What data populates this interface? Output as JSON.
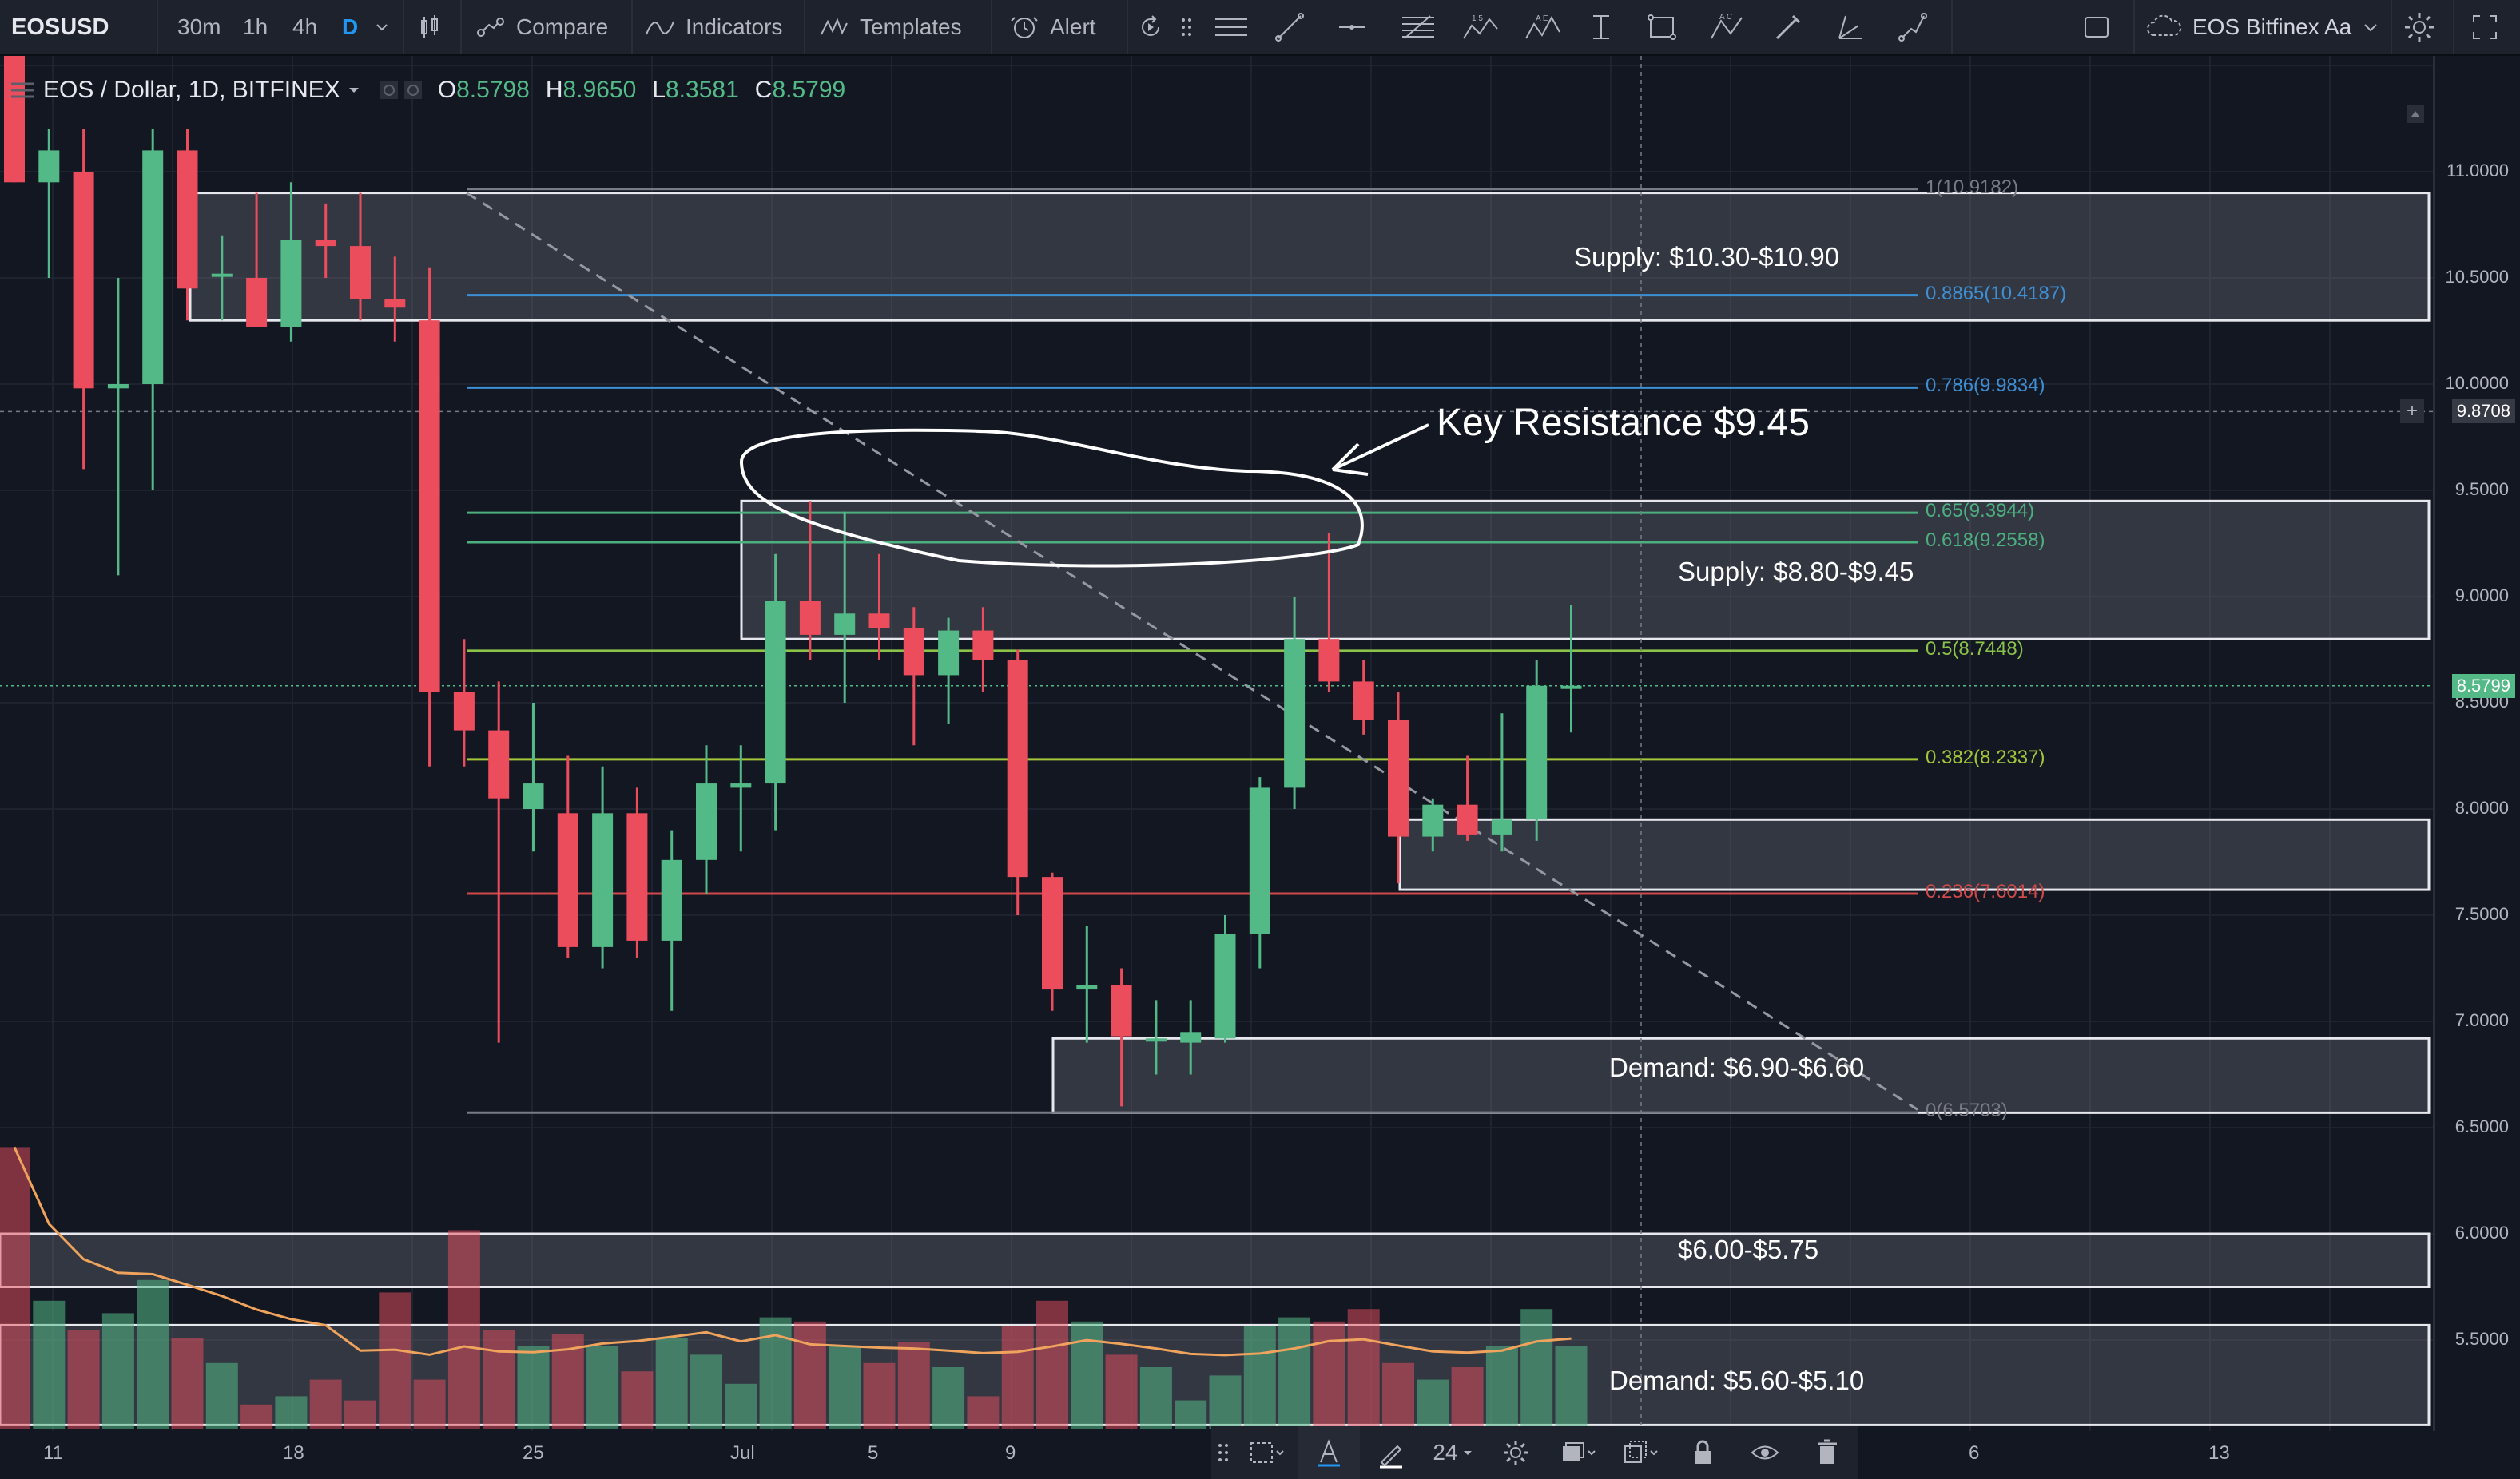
{
  "toolbar": {
    "symbol": "EOSUSD",
    "intervals": [
      "30m",
      "1h",
      "4h",
      "D"
    ],
    "compare_label": "Compare",
    "indicators_label": "Indicators",
    "templates_label": "Templates",
    "alert_label": "Alert",
    "fib_tool_digits": "1 5",
    "pattern_tool_letters": "A E",
    "abcd_tool_letters": "A C",
    "theme_label": "EOS Bitfinex Aa"
  },
  "legend": {
    "title": "EOS / Dollar, 1D, BITFINEX",
    "open_label": "O",
    "open": "8.5798",
    "high_label": "H",
    "high": "8.9650",
    "low_label": "L",
    "low": "8.3581",
    "close_label": "C",
    "close": "8.5799"
  },
  "annotations": {
    "supply_high": "Supply: $10.30-$10.90",
    "key_resistance": "Key Resistance $9.45",
    "supply_mid": "Supply: $8.80-$9.45",
    "demand_mid": "Demand: $6.90-$6.60",
    "zone_low": "$6.00-$5.75",
    "demand_low": "Demand: $5.60-$5.10"
  },
  "fib_levels": [
    {
      "label": "1(10.9182)",
      "price": 10.9182,
      "color": "#787b86"
    },
    {
      "label": "0.8865(10.4187)",
      "price": 10.4187,
      "color": "#3d8fd4"
    },
    {
      "label": "0.786(9.9834)",
      "price": 9.9834,
      "color": "#3d8fd4"
    },
    {
      "label": "0.65(9.3944)",
      "price": 9.3944,
      "color": "#4caf7f"
    },
    {
      "label": "0.618(9.2558)",
      "price": 9.2558,
      "color": "#4caf7f"
    },
    {
      "label": "0.5(8.7448)",
      "price": 8.7448,
      "color": "#8bc34a"
    },
    {
      "label": "0.382(8.2337)",
      "price": 8.2337,
      "color": "#a4c639"
    },
    {
      "label": "0.236(7.6014)",
      "price": 7.6014,
      "color": "#d04a4a"
    },
    {
      "label": "0(6.5703)",
      "price": 6.5703,
      "color": "#787b86"
    }
  ],
  "price_scale": [
    "11.0000",
    "10.5000",
    "10.0000",
    "9.5000",
    "9.0000",
    "8.5000",
    "8.0000",
    "7.5000",
    "7.0000",
    "6.5000",
    "6.0000",
    "5.5000"
  ],
  "price_tags": {
    "crosshair": "9.8708",
    "last": "8.5799"
  },
  "time_scale": [
    "11",
    "18",
    "25",
    "Jul",
    "5",
    "9",
    "6",
    "13"
  ],
  "bottom_toolbar": {
    "font_size": "24"
  },
  "colors": {
    "up": "#53b987",
    "down": "#eb4d5c",
    "background": "#131722"
  },
  "chart_data": {
    "type": "candlestick",
    "symbol": "EOSUSD",
    "timeframe": "1D",
    "candles": [
      {
        "o": 11.6,
        "h": 11.8,
        "l": 10.95,
        "c": 10.95
      },
      {
        "o": 10.95,
        "h": 11.2,
        "l": 10.5,
        "c": 11.1
      },
      {
        "o": 11.0,
        "h": 11.2,
        "l": 9.6,
        "c": 9.98
      },
      {
        "o": 9.98,
        "h": 10.5,
        "l": 9.1,
        "c": 10.0
      },
      {
        "o": 10.0,
        "h": 11.2,
        "l": 9.5,
        "c": 11.1
      },
      {
        "o": 11.1,
        "h": 11.2,
        "l": 10.3,
        "c": 10.45
      },
      {
        "o": 10.52,
        "h": 10.7,
        "l": 10.3,
        "c": 10.52
      },
      {
        "o": 10.5,
        "h": 10.9,
        "l": 10.3,
        "c": 10.27
      },
      {
        "o": 10.27,
        "h": 10.95,
        "l": 10.2,
        "c": 10.68
      },
      {
        "o": 10.68,
        "h": 10.85,
        "l": 10.5,
        "c": 10.65
      },
      {
        "o": 10.65,
        "h": 10.9,
        "l": 10.3,
        "c": 10.4
      },
      {
        "o": 10.4,
        "h": 10.6,
        "l": 10.2,
        "c": 10.36
      },
      {
        "o": 10.3,
        "h": 10.55,
        "l": 8.2,
        "c": 8.55
      },
      {
        "o": 8.55,
        "h": 8.8,
        "l": 8.2,
        "c": 8.37
      },
      {
        "o": 8.37,
        "h": 8.6,
        "l": 6.9,
        "c": 8.05
      },
      {
        "o": 8.0,
        "h": 8.5,
        "l": 7.8,
        "c": 8.12
      },
      {
        "o": 7.98,
        "h": 8.25,
        "l": 7.3,
        "c": 7.35
      },
      {
        "o": 7.35,
        "h": 8.2,
        "l": 7.25,
        "c": 7.98
      },
      {
        "o": 7.98,
        "h": 8.1,
        "l": 7.3,
        "c": 7.38
      },
      {
        "o": 7.38,
        "h": 7.9,
        "l": 7.05,
        "c": 7.76
      },
      {
        "o": 7.76,
        "h": 8.3,
        "l": 7.6,
        "c": 8.12
      },
      {
        "o": 8.1,
        "h": 8.3,
        "l": 7.8,
        "c": 8.12
      },
      {
        "o": 8.12,
        "h": 9.2,
        "l": 7.9,
        "c": 8.98
      },
      {
        "o": 8.98,
        "h": 9.45,
        "l": 8.7,
        "c": 8.82
      },
      {
        "o": 8.82,
        "h": 9.4,
        "l": 8.5,
        "c": 8.92
      },
      {
        "o": 8.92,
        "h": 9.2,
        "l": 8.7,
        "c": 8.85
      },
      {
        "o": 8.85,
        "h": 8.95,
        "l": 8.3,
        "c": 8.63
      },
      {
        "o": 8.63,
        "h": 8.9,
        "l": 8.4,
        "c": 8.84
      },
      {
        "o": 8.84,
        "h": 8.95,
        "l": 8.55,
        "c": 8.7
      },
      {
        "o": 8.7,
        "h": 8.75,
        "l": 7.5,
        "c": 7.68
      },
      {
        "o": 7.68,
        "h": 7.7,
        "l": 7.05,
        "c": 7.15
      },
      {
        "o": 7.15,
        "h": 7.45,
        "l": 6.9,
        "c": 7.17
      },
      {
        "o": 7.17,
        "h": 7.25,
        "l": 6.6,
        "c": 6.93
      },
      {
        "o": 6.92,
        "h": 7.1,
        "l": 6.75,
        "c": 6.92
      },
      {
        "o": 6.9,
        "h": 7.1,
        "l": 6.75,
        "c": 6.95
      },
      {
        "o": 6.92,
        "h": 7.5,
        "l": 6.9,
        "c": 7.41
      },
      {
        "o": 7.41,
        "h": 8.15,
        "l": 7.25,
        "c": 8.1
      },
      {
        "o": 8.1,
        "h": 9.0,
        "l": 8.0,
        "c": 8.8
      },
      {
        "o": 8.8,
        "h": 9.3,
        "l": 8.55,
        "c": 8.6
      },
      {
        "o": 8.6,
        "h": 8.7,
        "l": 8.35,
        "c": 8.42
      },
      {
        "o": 8.42,
        "h": 8.55,
        "l": 7.65,
        "c": 7.87
      },
      {
        "o": 7.87,
        "h": 8.05,
        "l": 7.8,
        "c": 8.02
      },
      {
        "o": 8.02,
        "h": 8.25,
        "l": 7.85,
        "c": 7.88
      },
      {
        "o": 7.88,
        "h": 8.45,
        "l": 7.8,
        "c": 7.95
      },
      {
        "o": 7.95,
        "h": 8.7,
        "l": 7.85,
        "c": 8.58
      },
      {
        "o": 8.58,
        "h": 8.96,
        "l": 8.36,
        "c": 8.58
      }
    ],
    "volume_relative": [
      0.68,
      0.31,
      0.24,
      0.28,
      0.36,
      0.22,
      0.16,
      0.06,
      0.08,
      0.12,
      0.07,
      0.33,
      0.12,
      0.48,
      0.24,
      0.2,
      0.23,
      0.2,
      0.14,
      0.22,
      0.18,
      0.11,
      0.27,
      0.26,
      0.2,
      0.16,
      0.21,
      0.15,
      0.08,
      0.25,
      0.31,
      0.26,
      0.18,
      0.15,
      0.07,
      0.13,
      0.25,
      0.27,
      0.26,
      0.29,
      0.16,
      0.12,
      0.15,
      0.2,
      0.29,
      0.2
    ],
    "ylim": [
      5.0,
      11.5
    ],
    "zones": [
      {
        "low": 10.3,
        "high": 10.9
      },
      {
        "low": 8.8,
        "high": 9.45
      },
      {
        "low": 7.62,
        "high": 7.95
      },
      {
        "low": 6.57,
        "high": 6.92
      },
      {
        "low": 5.75,
        "high": 6.0
      },
      {
        "low": 5.1,
        "high": 5.57
      }
    ],
    "trendline": {
      "from_price": 10.9,
      "to_price": 6.6
    },
    "fib_start": 6.5703,
    "fib_end": 10.9182,
    "grid": true
  }
}
